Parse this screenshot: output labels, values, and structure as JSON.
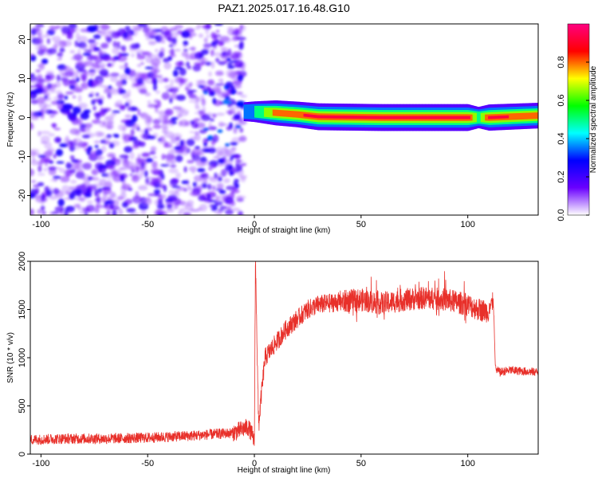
{
  "title": "PAZ1.2025.017.16.48.G10",
  "chart_data": [
    {
      "type": "heatmap",
      "name": "spectrogram",
      "xlabel": "Height of straight line (km)",
      "ylabel": "Frequency (Hz)",
      "xlim": [
        -105,
        133
      ],
      "ylim": [
        -25,
        24
      ],
      "xticks": [
        -100,
        -50,
        0,
        50,
        100
      ],
      "yticks": [
        -20,
        -10,
        0,
        10,
        20
      ],
      "colorbar": {
        "label": "Normalized spectral amplitude",
        "range": [
          0.0,
          1.0
        ],
        "ticks": [
          0.0,
          0.2,
          0.4,
          0.6,
          0.8
        ],
        "colors": [
          "#ffffff",
          "#6a00ff",
          "#0000ff",
          "#00ffff",
          "#00ff00",
          "#ffff00",
          "#ff0000",
          "#ff0080"
        ]
      },
      "noise_region": {
        "x_range": [
          -105,
          -5
        ],
        "freq_range": [
          -25,
          24
        ],
        "amplitude_range": [
          0.0,
          0.2
        ]
      },
      "signal_trace": [
        {
          "x": -5,
          "freq": 1.5,
          "amplitude": 0.3
        },
        {
          "x": 0,
          "freq": 1.5,
          "amplitude": 0.45
        },
        {
          "x": 10,
          "freq": 1.2,
          "amplitude": 0.8
        },
        {
          "x": 20,
          "freq": 0.8,
          "amplitude": 0.85
        },
        {
          "x": 30,
          "freq": 0.2,
          "amplitude": 0.95
        },
        {
          "x": 60,
          "freq": 0.0,
          "amplitude": 0.95
        },
        {
          "x": 100,
          "freq": 0.0,
          "amplitude": 0.95
        },
        {
          "x": 105,
          "freq": 0.0,
          "amplitude": 0.5
        },
        {
          "x": 110,
          "freq": 0.0,
          "amplitude": 0.9
        },
        {
          "x": 133,
          "freq": 0.5,
          "amplitude": 0.85
        }
      ]
    },
    {
      "type": "line",
      "name": "snr",
      "xlabel": "Height of straight line (km)",
      "ylabel": "SNR (10 * v/v)",
      "xlim": [
        -105,
        133
      ],
      "ylim": [
        0,
        2000
      ],
      "xticks": [
        -100,
        -50,
        0,
        50,
        100
      ],
      "yticks": [
        0,
        500,
        1000,
        1500,
        2000
      ],
      "color": "#e8302a",
      "x": [
        -105,
        -90,
        -70,
        -50,
        -30,
        -10,
        -3,
        -1,
        0,
        0.5,
        1,
        1.5,
        2,
        3,
        5,
        10,
        15,
        20,
        25,
        30,
        40,
        50,
        60,
        70,
        80,
        90,
        100,
        105,
        110,
        112,
        113,
        115,
        120,
        125,
        133
      ],
      "y": [
        150,
        160,
        160,
        170,
        190,
        220,
        280,
        200,
        120,
        2000,
        1500,
        800,
        300,
        550,
        1000,
        1150,
        1300,
        1400,
        1500,
        1550,
        1580,
        1600,
        1560,
        1600,
        1620,
        1600,
        1550,
        1500,
        1480,
        1600,
        880,
        850,
        870,
        860,
        850
      ]
    }
  ]
}
